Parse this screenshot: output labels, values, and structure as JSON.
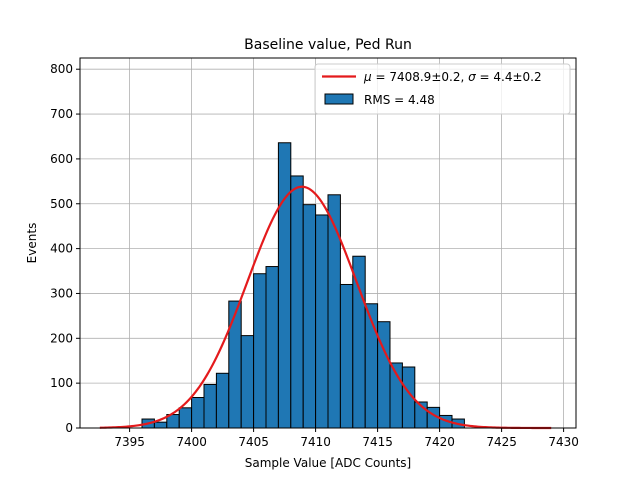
{
  "chart_data": {
    "type": "bar",
    "title": "Baseline value, Ped Run",
    "xlabel": "Sample Value [ADC Counts]",
    "ylabel": "Events",
    "xlim": [
      7391,
      7431
    ],
    "ylim": [
      0,
      825
    ],
    "xticks": [
      7395,
      7400,
      7405,
      7410,
      7415,
      7420,
      7425,
      7430
    ],
    "yticks": [
      0,
      100,
      200,
      300,
      400,
      500,
      600,
      700,
      800
    ],
    "grid": true,
    "legend_position": "top-right",
    "bar_color": "#1f77b4",
    "fit_color": "#e41a1c",
    "histogram": {
      "name": "RMS = 4.48",
      "bins": [
        {
          "x0": 7396.0,
          "x1": 7397.0,
          "value": 20
        },
        {
          "x0": 7397.0,
          "x1": 7398.0,
          "value": 13
        },
        {
          "x0": 7398.0,
          "x1": 7399.0,
          "value": 30
        },
        {
          "x0": 7399.0,
          "x1": 7400.0,
          "value": 45
        },
        {
          "x0": 7400.0,
          "x1": 7401.0,
          "value": 68
        },
        {
          "x0": 7401.0,
          "x1": 7402.0,
          "value": 97
        },
        {
          "x0": 7402.0,
          "x1": 7403.0,
          "value": 122
        },
        {
          "x0": 7403.0,
          "x1": 7404.0,
          "value": 283
        },
        {
          "x0": 7404.0,
          "x1": 7405.0,
          "value": 206
        },
        {
          "x0": 7405.0,
          "x1": 7406.0,
          "value": 344
        },
        {
          "x0": 7406.0,
          "x1": 7407.0,
          "value": 360
        },
        {
          "x0": 7407.0,
          "x1": 7408.0,
          "value": 636
        },
        {
          "x0": 7408.0,
          "x1": 7409.0,
          "value": 562
        },
        {
          "x0": 7409.0,
          "x1": 7410.0,
          "value": 498
        },
        {
          "x0": 7410.0,
          "x1": 7411.0,
          "value": 475
        },
        {
          "x0": 7411.0,
          "x1": 7412.0,
          "value": 520
        },
        {
          "x0": 7412.0,
          "x1": 7413.0,
          "value": 320
        },
        {
          "x0": 7413.0,
          "x1": 7414.0,
          "value": 383
        },
        {
          "x0": 7414.0,
          "x1": 7415.0,
          "value": 277
        },
        {
          "x0": 7415.0,
          "x1": 7416.0,
          "value": 237
        },
        {
          "x0": 7416.0,
          "x1": 7417.0,
          "value": 145
        },
        {
          "x0": 7417.0,
          "x1": 7418.0,
          "value": 136
        },
        {
          "x0": 7418.0,
          "x1": 7419.0,
          "value": 58
        },
        {
          "x0": 7419.0,
          "x1": 7420.0,
          "value": 46
        },
        {
          "x0": 7420.0,
          "x1": 7421.0,
          "value": 28
        },
        {
          "x0": 7421.0,
          "x1": 7422.0,
          "value": 20
        }
      ]
    },
    "fit": {
      "name": "μ = 7408.9±0.2, σ = 4.4±0.2",
      "mu": 7408.9,
      "sigma": 4.4,
      "amplitude": 538,
      "x_range": [
        7392.6,
        7429.0
      ]
    },
    "legend": {
      "fit_label_parts": [
        "μ",
        " = 7408.9±0.2, ",
        "σ",
        " = 4.4±0.2"
      ],
      "hist_label": "RMS = 4.48"
    }
  }
}
